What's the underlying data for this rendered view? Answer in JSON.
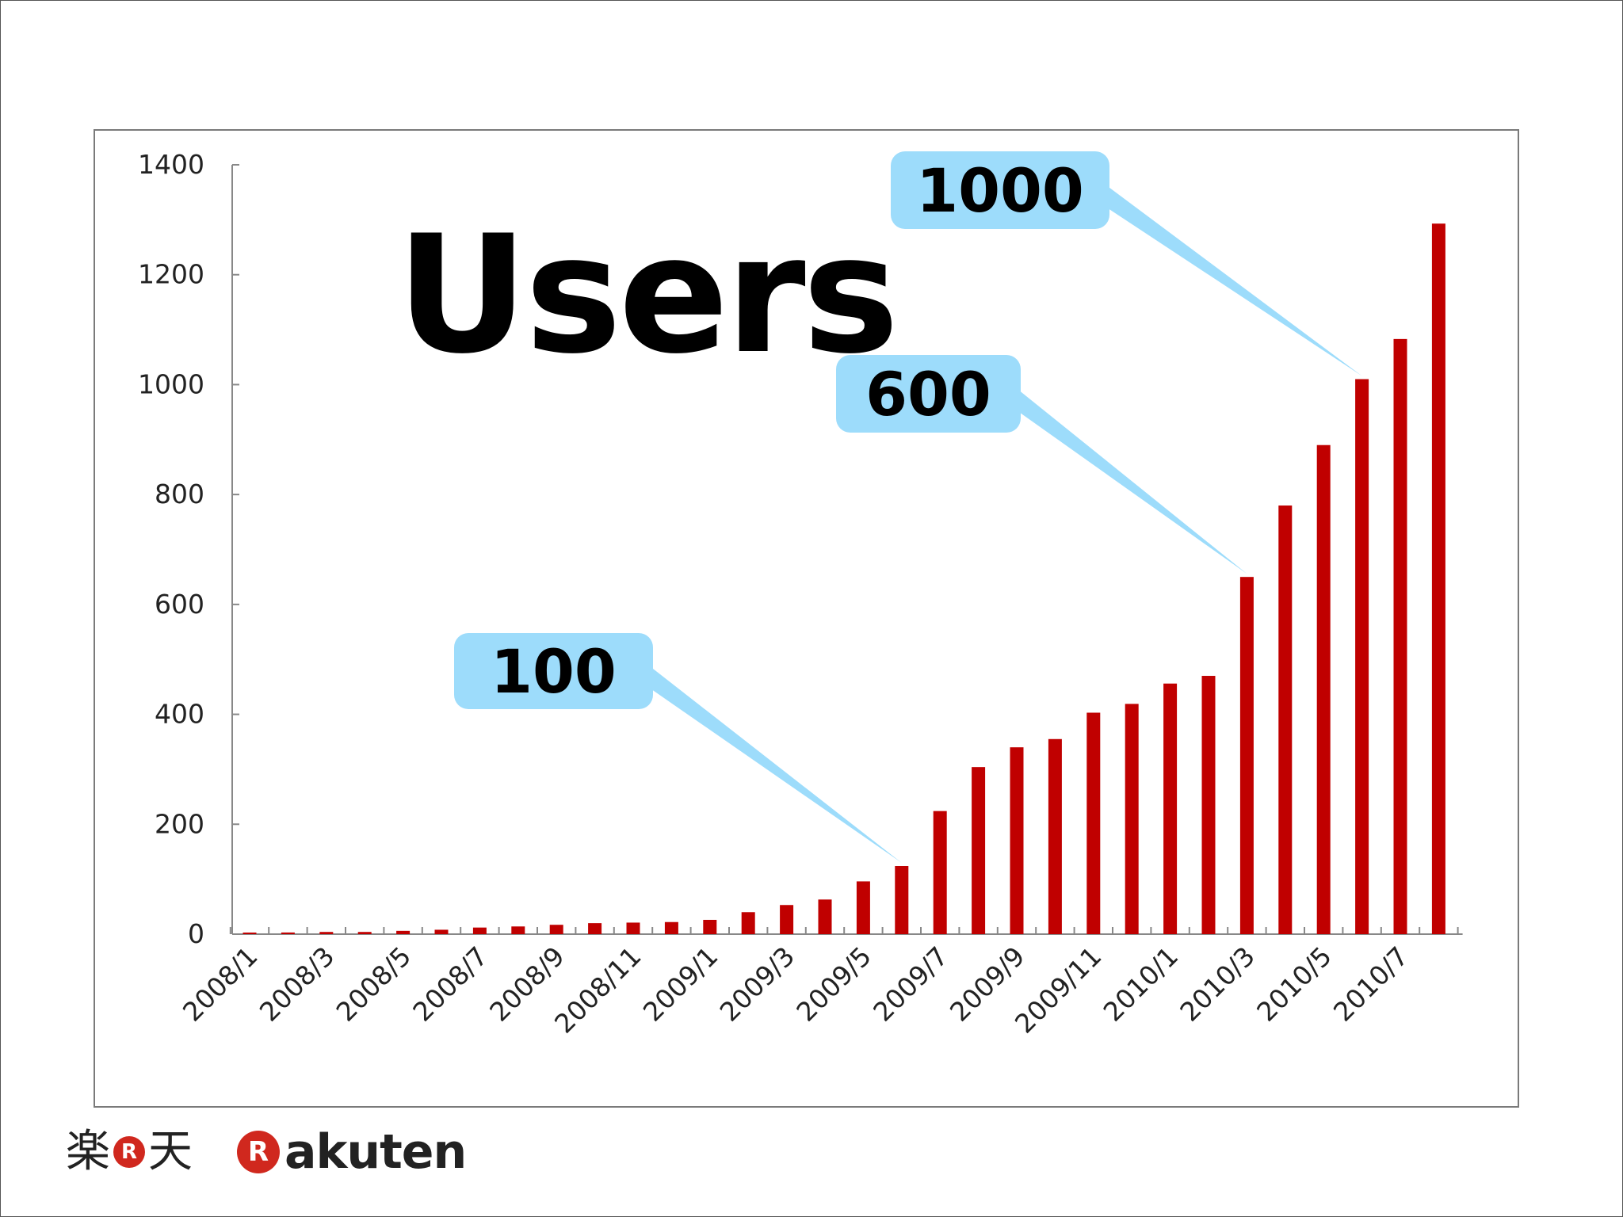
{
  "chart_data": {
    "type": "bar",
    "title": "Users",
    "xlabel": "",
    "ylabel": "",
    "ylim": [
      0,
      1400
    ],
    "yticks": [
      0,
      200,
      400,
      600,
      800,
      1000,
      1200,
      1400
    ],
    "categories": [
      "2008/1",
      "2008/2",
      "2008/3",
      "2008/4",
      "2008/5",
      "2008/6",
      "2008/7",
      "2008/8",
      "2008/9",
      "2008/10",
      "2008/11",
      "2008/12",
      "2009/1",
      "2009/2",
      "2009/3",
      "2009/4",
      "2009/5",
      "2009/6",
      "2009/7",
      "2009/8",
      "2009/9",
      "2009/10",
      "2009/11",
      "2009/12",
      "2010/1",
      "2010/2",
      "2010/3",
      "2010/4",
      "2010/5",
      "2010/6",
      "2010/7",
      "2010/8"
    ],
    "xtick_labels": [
      "2008/1",
      "2008/3",
      "2008/5",
      "2008/7",
      "2008/9",
      "2008/11",
      "2009/1",
      "2009/3",
      "2009/5",
      "2009/7",
      "2009/9",
      "2009/11",
      "2010/1",
      "2010/3",
      "2010/5",
      "2010/7"
    ],
    "values": [
      2,
      3,
      4,
      4,
      6,
      8,
      12,
      14,
      17,
      20,
      21,
      22,
      26,
      40,
      53,
      63,
      96,
      124,
      224,
      304,
      340,
      355,
      403,
      419,
      456,
      470,
      650,
      780,
      890,
      1010,
      1083,
      1293
    ],
    "bar_color": "#c00000",
    "grid": false,
    "legend": "none",
    "annotations": [
      {
        "text": "100",
        "target_index": 17
      },
      {
        "text": "600",
        "target_index": 26
      },
      {
        "text": "1000",
        "target_index": 29
      }
    ],
    "callout_color": "#9ddcfb"
  },
  "logos": {
    "kanji_left": "楽",
    "kanji_right": "天",
    "r_mark": "R",
    "brand_word": "akuten"
  }
}
